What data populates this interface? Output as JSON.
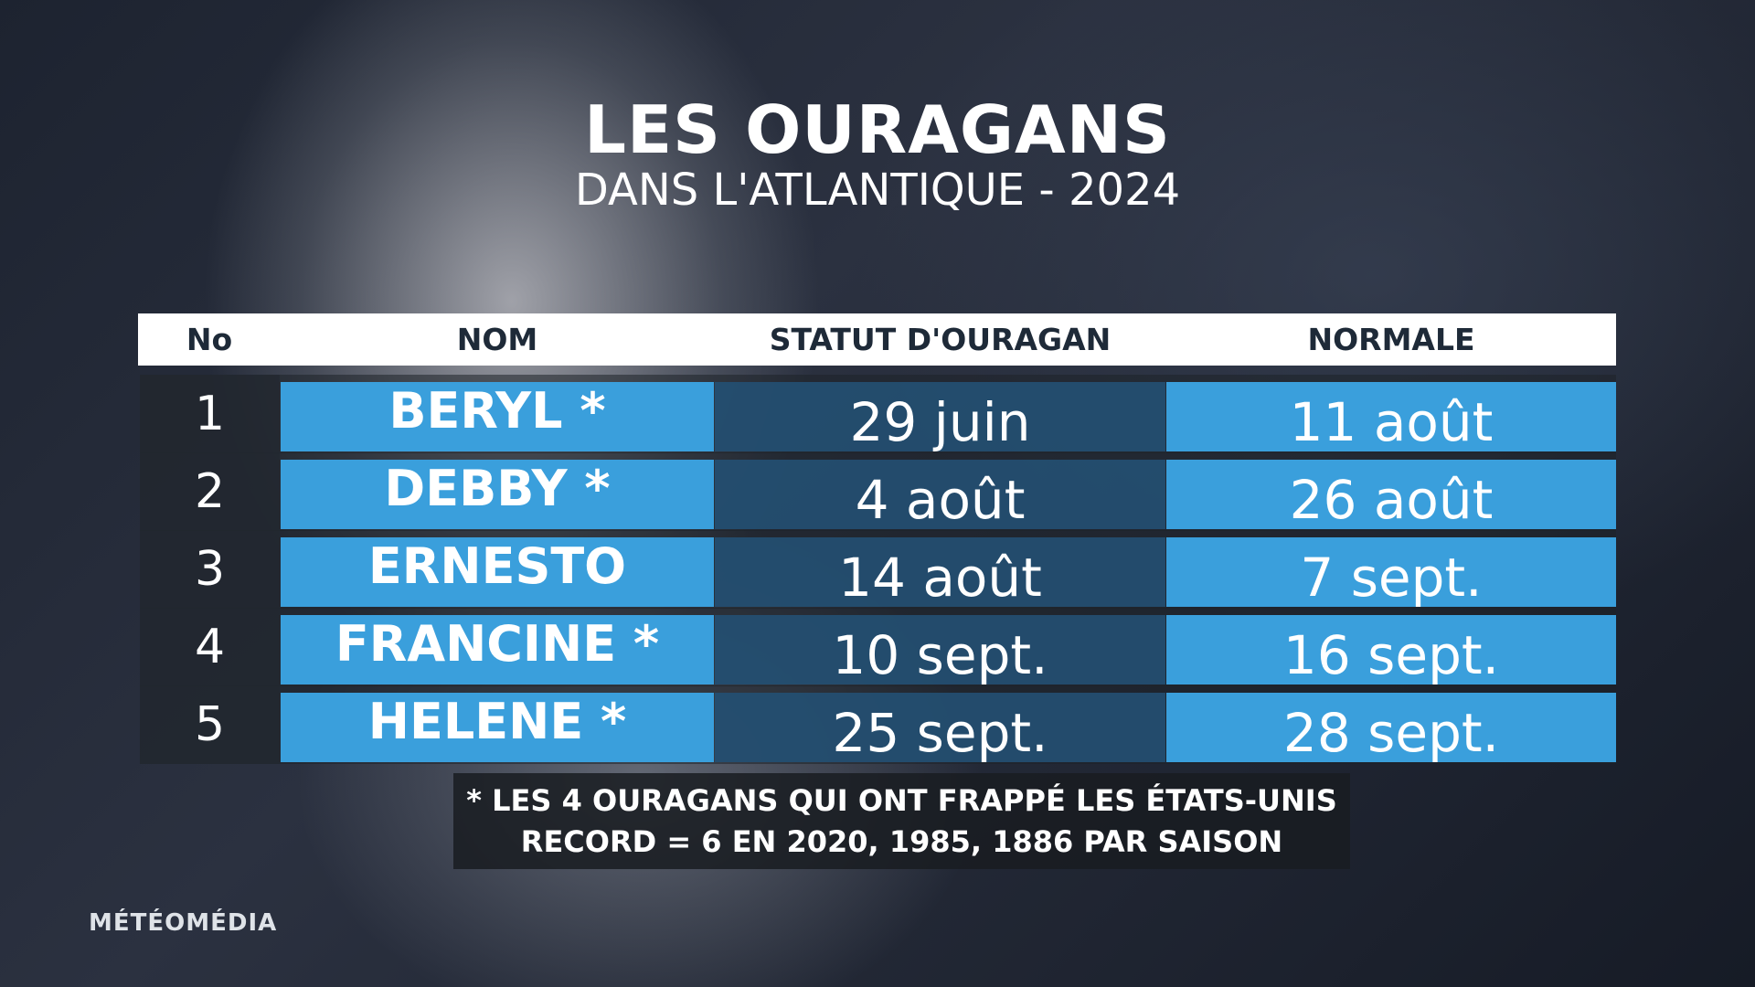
{
  "header": {
    "title": "LES OURAGANS",
    "subtitle": "DANS L'ATLANTIQUE - 2024"
  },
  "table": {
    "columns": [
      "No",
      "NOM",
      "STATUT D'OURAGAN",
      "NORMALE"
    ],
    "rows": [
      [
        "1",
        "BERYL *",
        "29 juin",
        "11 août"
      ],
      [
        "2",
        "DEBBY *",
        "4 août",
        "26 août"
      ],
      [
        "3",
        "ERNESTO",
        "14 août",
        "7 sept."
      ],
      [
        "4",
        "FRANCINE *",
        "10 sept.",
        "16 sept."
      ],
      [
        "5",
        "HELENE *",
        "25 sept.",
        "28 sept."
      ]
    ]
  },
  "footnote": [
    "* LES 4 OURAGANS QUI ONT FRAPPÉ LES ÉTATS-UNIS",
    "RECORD = 6 EN 2020, 1985, 1886 PAR SAISON"
  ],
  "brand": "MÉTÉOMÉDIA"
}
